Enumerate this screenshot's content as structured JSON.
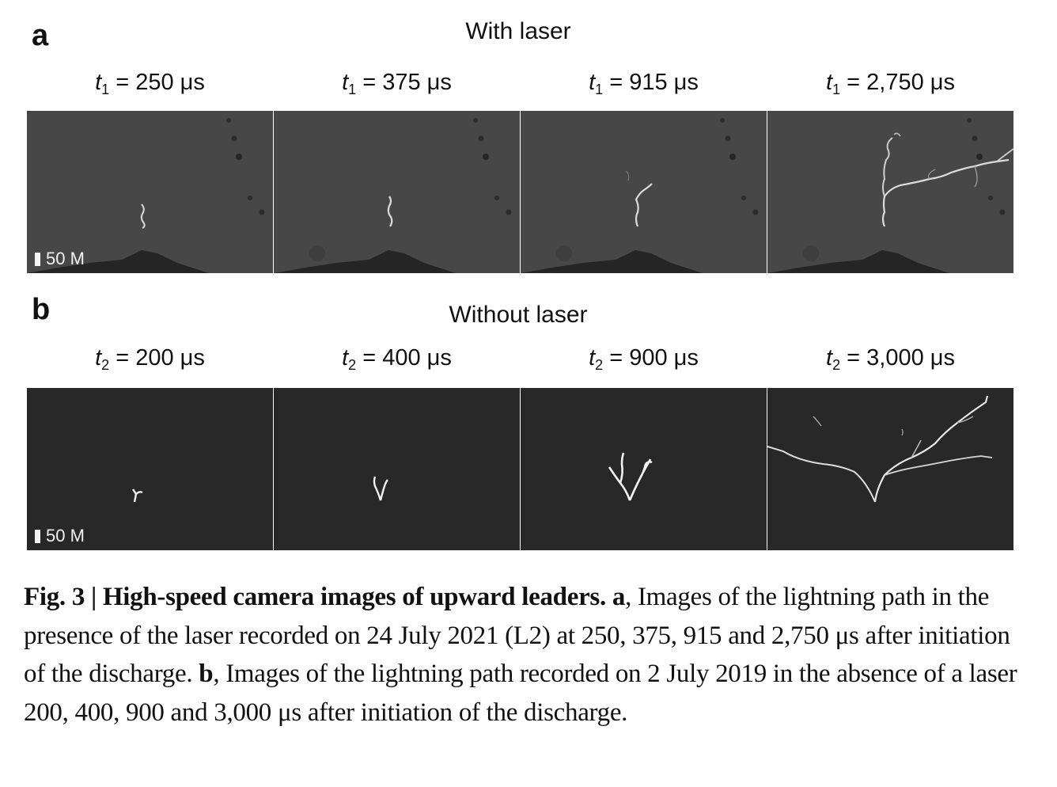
{
  "figure": {
    "panel_a": {
      "letter": "a",
      "title": "With laser",
      "scale_bar": "50 M",
      "frames": [
        {
          "var": "t",
          "sub": "1",
          "value": "= 250 μs"
        },
        {
          "var": "t",
          "sub": "1",
          "value": "= 375 μs"
        },
        {
          "var": "t",
          "sub": "1",
          "value": "= 915 μs"
        },
        {
          "var": "t",
          "sub": "1",
          "value": "= 2,750 μs"
        }
      ]
    },
    "panel_b": {
      "letter": "b",
      "title": "Without laser",
      "scale_bar": "50 M",
      "frames": [
        {
          "var": "t",
          "sub": "2",
          "value": "= 200 μs"
        },
        {
          "var": "t",
          "sub": "2",
          "value": "= 400 μs"
        },
        {
          "var": "t",
          "sub": "2",
          "value": "= 900 μs"
        },
        {
          "var": "t",
          "sub": "2",
          "value": "= 3,000 μs"
        }
      ]
    },
    "caption": {
      "label": "Fig. 3 | High-speed camera images of upward leaders.",
      "a_label": "a",
      "a_text": ", Images of the lightning path in the presence of the laser recorded on 24 July 2021 (L2) at 250, 375, 915 and 2,750 μs after initiation of the discharge.",
      "b_label": "b",
      "b_text": ", Images of the lightning path recorded on 2 July 2019 in the absence of a laser 200, 400, 900 and 3,000 μs after initiation of the discharge."
    }
  }
}
